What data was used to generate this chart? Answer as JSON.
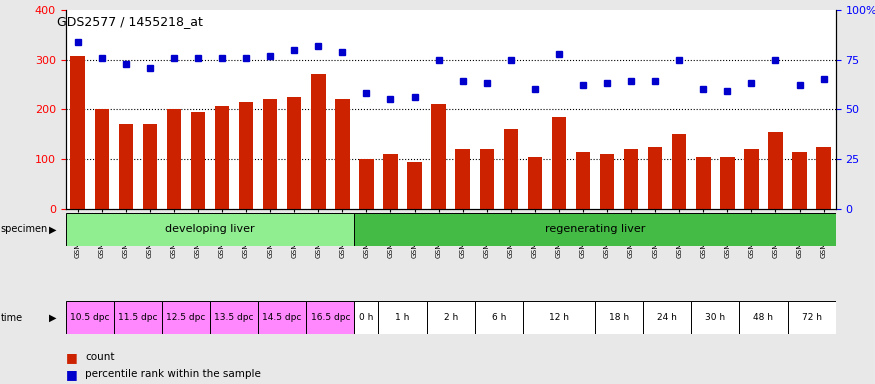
{
  "title": "GDS2577 / 1455218_at",
  "samples": [
    "GSM161128",
    "GSM161129",
    "GSM161130",
    "GSM161131",
    "GSM161132",
    "GSM161133",
    "GSM161134",
    "GSM161135",
    "GSM161136",
    "GSM161137",
    "GSM161138",
    "GSM161139",
    "GSM161108",
    "GSM161109",
    "GSM161110",
    "GSM161111",
    "GSM161112",
    "GSM161113",
    "GSM161114",
    "GSM161115",
    "GSM161116",
    "GSM161117",
    "GSM161118",
    "GSM161119",
    "GSM161120",
    "GSM161121",
    "GSM161122",
    "GSM161123",
    "GSM161124",
    "GSM161125",
    "GSM161126",
    "GSM161127"
  ],
  "counts": [
    307,
    200,
    170,
    170,
    200,
    195,
    207,
    215,
    220,
    225,
    270,
    220,
    100,
    110,
    95,
    210,
    120,
    120,
    160,
    105,
    185,
    115,
    110,
    120,
    125,
    150,
    105,
    105,
    120,
    155,
    115,
    125
  ],
  "percentile": [
    84,
    76,
    73,
    71,
    76,
    76,
    76,
    76,
    77,
    80,
    82,
    79,
    58,
    55,
    56,
    75,
    64,
    63,
    75,
    60,
    78,
    62,
    63,
    64,
    64,
    75,
    60,
    59,
    63,
    75,
    62,
    65
  ],
  "specimen_groups": [
    {
      "label": "developing liver",
      "start": 0,
      "end": 12,
      "color": "#90EE90"
    },
    {
      "label": "regenerating liver",
      "start": 12,
      "end": 32,
      "color": "#44BB44"
    }
  ],
  "time_labels": [
    {
      "label": "10.5 dpc",
      "start": 0,
      "end": 2,
      "color": "#FF88FF"
    },
    {
      "label": "11.5 dpc",
      "start": 2,
      "end": 4,
      "color": "#FF88FF"
    },
    {
      "label": "12.5 dpc",
      "start": 4,
      "end": 6,
      "color": "#FF88FF"
    },
    {
      "label": "13.5 dpc",
      "start": 6,
      "end": 8,
      "color": "#FF88FF"
    },
    {
      "label": "14.5 dpc",
      "start": 8,
      "end": 10,
      "color": "#FF88FF"
    },
    {
      "label": "16.5 dpc",
      "start": 10,
      "end": 12,
      "color": "#FF88FF"
    },
    {
      "label": "0 h",
      "start": 12,
      "end": 13,
      "color": "#FFFFFF"
    },
    {
      "label": "1 h",
      "start": 13,
      "end": 15,
      "color": "#FFFFFF"
    },
    {
      "label": "2 h",
      "start": 15,
      "end": 17,
      "color": "#FFFFFF"
    },
    {
      "label": "6 h",
      "start": 17,
      "end": 19,
      "color": "#FFFFFF"
    },
    {
      "label": "12 h",
      "start": 19,
      "end": 22,
      "color": "#FFFFFF"
    },
    {
      "label": "18 h",
      "start": 22,
      "end": 24,
      "color": "#FFFFFF"
    },
    {
      "label": "24 h",
      "start": 24,
      "end": 26,
      "color": "#FFFFFF"
    },
    {
      "label": "30 h",
      "start": 26,
      "end": 28,
      "color": "#FFFFFF"
    },
    {
      "label": "48 h",
      "start": 28,
      "end": 30,
      "color": "#FFFFFF"
    },
    {
      "label": "72 h",
      "start": 30,
      "end": 32,
      "color": "#FFFFFF"
    }
  ],
  "bar_color": "#CC2200",
  "dot_color": "#0000CC",
  "left_ylim": [
    0,
    400
  ],
  "right_ylim": [
    0,
    100
  ],
  "left_yticks": [
    0,
    100,
    200,
    300,
    400
  ],
  "right_yticks": [
    0,
    25,
    50,
    75,
    100
  ],
  "right_yticklabels": [
    "0",
    "25",
    "50",
    "75",
    "100%"
  ],
  "bg_color": "#E8E8E8",
  "plot_bg": "#FFFFFF",
  "grid_lines": [
    100,
    200,
    300
  ]
}
